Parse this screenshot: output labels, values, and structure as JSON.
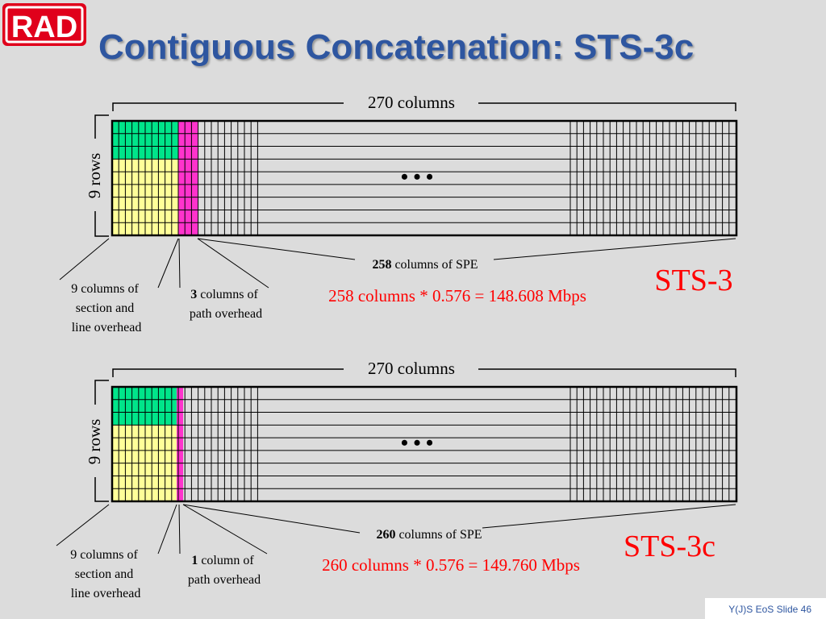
{
  "logo": {
    "text": "RAD",
    "color": "#e0001b"
  },
  "title": "Contiguous Concatenation: STS-3c",
  "panels": [
    {
      "id": "sts3",
      "columns_label": "270 columns",
      "rows_label": "9 rows",
      "dots": "• • •",
      "section_overhead_label": [
        "9 columns of",
        "section and",
        "line overhead"
      ],
      "path_overhead_count": "3",
      "path_overhead_rest": " columns of",
      "path_overhead_line2": "path overhead",
      "spe_count": "258",
      "spe_rest": " columns of SPE",
      "rate": "258 columns * 0.576 = 148.608 Mbps",
      "name": "STS-3"
    },
    {
      "id": "sts3c",
      "columns_label": "270 columns",
      "rows_label": "9 rows",
      "dots": "• • •",
      "section_overhead_label": [
        "9 columns of",
        "section and",
        "line overhead"
      ],
      "path_overhead_count": "1",
      "path_overhead_rest": " column of",
      "path_overhead_line2": "path overhead",
      "spe_count": "260",
      "spe_rest": " columns of SPE",
      "rate": "260 columns * 0.576 = 149.760 Mbps",
      "name": "STS-3c"
    }
  ],
  "colors": {
    "transport_overhead_top": "#00e58a",
    "transport_overhead_bottom": "#ffff99",
    "path_overhead": "#ff33cc",
    "red_text": "#ff0000",
    "title_blue": "#2e56a0"
  },
  "footer": "Y(J)S EoS   Slide 46"
}
